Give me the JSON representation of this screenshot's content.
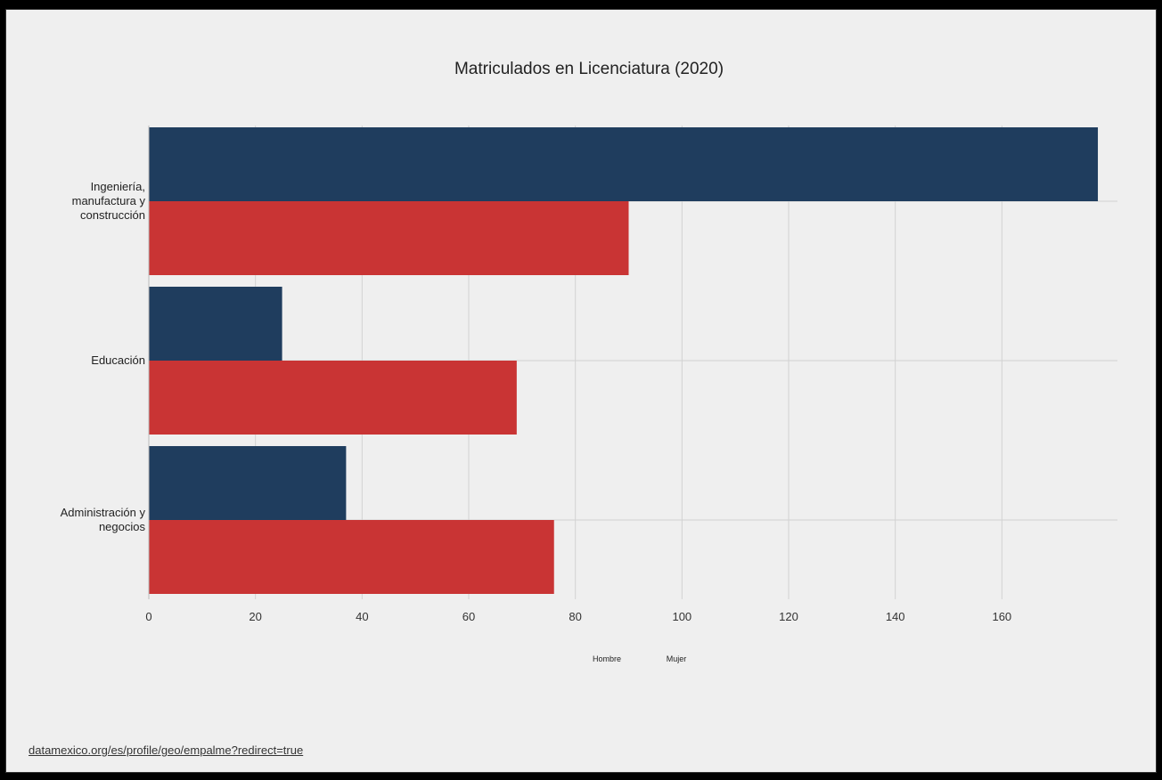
{
  "source_link": "datamexico.org/es/profile/geo/empalme?redirect=true",
  "colors": {
    "background": "#efefef",
    "hombre": "#1f3d5e",
    "mujer": "#c93434",
    "grid": "#d2d2d2"
  },
  "chart_data": {
    "type": "bar",
    "orientation": "horizontal",
    "title": "Matriculados en Licenciatura (2020)",
    "xlabel": "",
    "ylabel": "",
    "xlim": [
      0,
      180
    ],
    "xticks": [
      0,
      20,
      40,
      60,
      80,
      100,
      120,
      140,
      160
    ],
    "grid": true,
    "legend_position": "bottom-center",
    "categories": [
      [
        "Ingeniería,",
        "manufactura y",
        "construcción"
      ],
      [
        "Educación"
      ],
      [
        "Administración y",
        "negocios"
      ]
    ],
    "series": [
      {
        "name": "Hombre",
        "color": "#1f3d5e",
        "values": [
          178,
          25,
          37
        ]
      },
      {
        "name": "Mujer",
        "color": "#c93434",
        "values": [
          90,
          69,
          76
        ]
      }
    ]
  }
}
